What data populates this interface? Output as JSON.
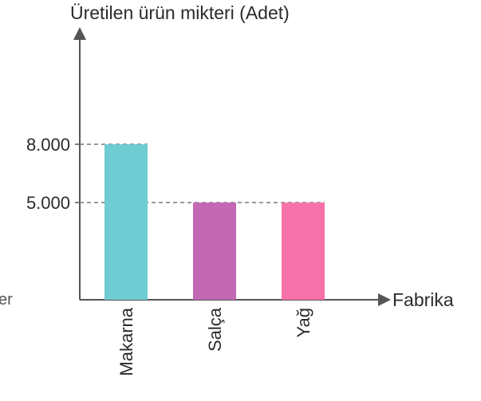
{
  "chart_data": {
    "type": "bar",
    "ylabel": "Üretilen ürün mikteri (Adet)",
    "xlabel": "Fabrika",
    "categories": [
      "Makarna",
      "Salça",
      "Yağ"
    ],
    "values": [
      8000,
      5000,
      5000
    ],
    "colors": [
      "#6fccd2",
      "#c468b4",
      "#f772a8"
    ],
    "yticks": [
      {
        "value": 5000,
        "label": "5.000"
      },
      {
        "value": 8000,
        "label": "8.000"
      }
    ],
    "ylim": [
      0,
      16000
    ],
    "grid": false,
    "guide_lines": "dashed"
  },
  "side_text": "er"
}
